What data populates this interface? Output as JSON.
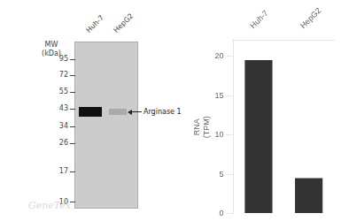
{
  "chart_data": {
    "type": "bar",
    "categories": [
      "Huh-7",
      "HepG2"
    ],
    "values": [
      19.5,
      4.5
    ],
    "color": "#333333",
    "ylabel": "RNA\n(TPM)",
    "ylim": [
      0,
      22
    ],
    "yticks": [
      0,
      5,
      10,
      15,
      20
    ],
    "grid": false,
    "annotations": [
      "MW\n(kDa)",
      "95",
      "72",
      "55",
      "43",
      "34",
      "26",
      "17",
      "10",
      "Huh-7",
      "HepG2",
      "Arginase 1",
      "GeneTex"
    ]
  }
}
